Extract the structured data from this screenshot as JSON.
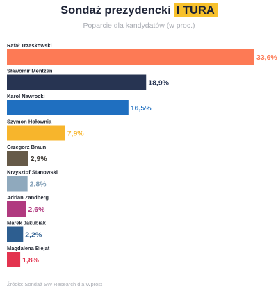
{
  "title": {
    "main": "Sondaż prezydencki",
    "badge": "I TURA"
  },
  "subtitle": "Poparcie dla kandydatów (w proc.)",
  "source": "Źródło: Sondaż SW Research dla Wprost",
  "chart_data": {
    "type": "bar",
    "orientation": "horizontal",
    "unit": "%",
    "xlim": [
      0,
      33.6
    ],
    "grid": false,
    "bars": [
      {
        "name": "Rafał Trzaskowski",
        "value": 33.6,
        "label": "33,6%",
        "color": "#fd7a55",
        "label_color": "#fd7a55"
      },
      {
        "name": "Sławomir Mentzen",
        "value": 18.9,
        "label": "18,9%",
        "color": "#273452",
        "label_color": "#273452"
      },
      {
        "name": "Karol Nawrocki",
        "value": 16.5,
        "label": "16,5%",
        "color": "#1f6fc0",
        "label_color": "#1f6fc0"
      },
      {
        "name": "Szymon Hołownia",
        "value": 7.9,
        "label": "7,9%",
        "color": "#f7b52c",
        "label_color": "#f7b52c"
      },
      {
        "name": "Grzegorz Braun",
        "value": 2.9,
        "label": "2,9%",
        "color": "#665a48",
        "label_color": "#3a3530"
      },
      {
        "name": "Krzysztof Stanowski",
        "value": 2.8,
        "label": "2,8%",
        "color": "#8fa9bd",
        "label_color": "#7f9db5"
      },
      {
        "name": "Adrian Zandberg",
        "value": 2.6,
        "label": "2,6%",
        "color": "#b03a7f",
        "label_color": "#b03a7f"
      },
      {
        "name": "Marek Jakubiak",
        "value": 2.2,
        "label": "2,2%",
        "color": "#2d5e90",
        "label_color": "#2d5e90"
      },
      {
        "name": "Magdalena Biejat",
        "value": 1.8,
        "label": "1,8%",
        "color": "#e3344f",
        "label_color": "#e3344f"
      }
    ]
  }
}
